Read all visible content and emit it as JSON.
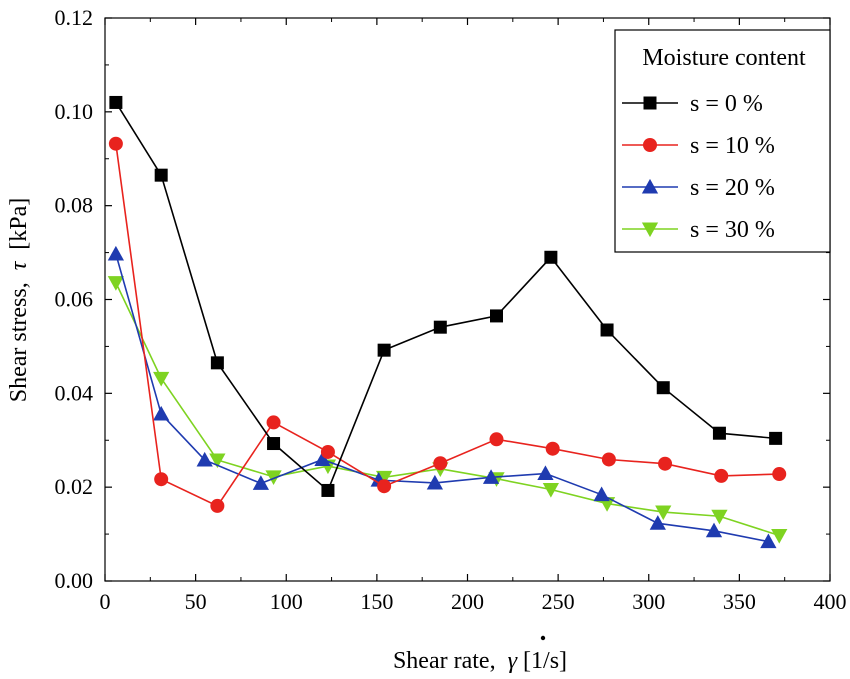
{
  "chart_data": {
    "type": "line",
    "xlabel_prefix": "Shear rate,",
    "xlabel_symbol": "γ",
    "xlabel_unit": "[1/s]",
    "ylabel_prefix": "Shear stress,",
    "ylabel_symbol": "τ",
    "ylabel_unit": "[kPa]",
    "xlim": [
      0,
      400
    ],
    "ylim": [
      0,
      0.12
    ],
    "xticks": [
      "0",
      "50",
      "100",
      "150",
      "200",
      "250",
      "300",
      "350",
      "400"
    ],
    "yticks": [
      "0.00",
      "0.02",
      "0.04",
      "0.06",
      "0.08",
      "0.10",
      "0.12"
    ],
    "grid": false,
    "legend": {
      "title": "Moisture content",
      "placement": "top-right"
    },
    "series": [
      {
        "name": "s = 0 %",
        "color": "#000000",
        "marker": "square",
        "x": [
          6,
          31,
          62,
          93,
          123,
          154,
          185,
          216,
          246,
          277,
          308,
          339,
          370
        ],
        "y": [
          0.102,
          0.0865,
          0.0465,
          0.0293,
          0.0193,
          0.0492,
          0.0541,
          0.0565,
          0.069,
          0.0535,
          0.0412,
          0.0315,
          0.0304
        ]
      },
      {
        "name": "s = 10 %",
        "color": "#e8231e",
        "marker": "circle",
        "x": [
          6,
          31,
          62,
          93,
          123,
          154,
          185,
          216,
          247,
          278,
          309,
          340,
          372
        ],
        "y": [
          0.0932,
          0.0217,
          0.016,
          0.0338,
          0.0275,
          0.0202,
          0.0251,
          0.0302,
          0.0282,
          0.0259,
          0.025,
          0.0224,
          0.0228
        ]
      },
      {
        "name": "s = 20 %",
        "color": "#1f3bb0",
        "marker": "triangle-up",
        "x": [
          6,
          31,
          55,
          86,
          120,
          151,
          182,
          213,
          243,
          274,
          305,
          336,
          366
        ],
        "y": [
          0.0697,
          0.0356,
          0.0258,
          0.0208,
          0.0259,
          0.0215,
          0.0209,
          0.0221,
          0.0229,
          0.0184,
          0.0123,
          0.0107,
          0.0084
        ]
      },
      {
        "name": "s = 30 %",
        "color": "#7ed321",
        "marker": "triangle-down",
        "x": [
          6,
          31,
          62,
          93,
          123,
          154,
          185,
          216,
          246,
          277,
          308,
          339,
          372
        ],
        "y": [
          0.0636,
          0.0432,
          0.0258,
          0.0222,
          0.0245,
          0.0221,
          0.0239,
          0.0218,
          0.0195,
          0.0165,
          0.0147,
          0.0138,
          0.0097
        ]
      }
    ]
  }
}
